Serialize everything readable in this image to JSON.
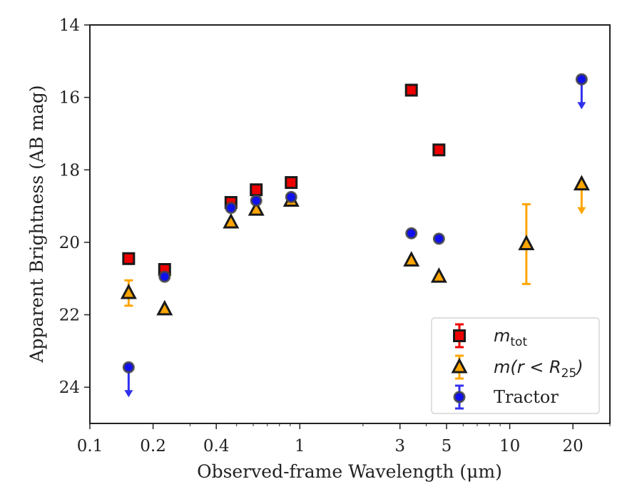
{
  "chart_data": {
    "type": "scatter",
    "xlabel": "Observed-frame Wavelength (μm)",
    "ylabel": "Apparent Brightness (AB mag)",
    "x_scale": "log",
    "xlim": [
      0.1,
      30
    ],
    "ylim": [
      25,
      14
    ],
    "y_inverted": true,
    "x_ticks": [
      0.1,
      0.2,
      0.4,
      1,
      3,
      5,
      10,
      20
    ],
    "x_tick_labels": [
      "0.1",
      "0.2",
      "0.4",
      "1",
      "3",
      "5",
      "10",
      "20"
    ],
    "y_ticks": [
      14,
      16,
      18,
      20,
      22,
      24
    ],
    "y_tick_labels": [
      "14",
      "16",
      "18",
      "20",
      "22",
      "24"
    ],
    "grid": false,
    "legend_position": "bottom-right",
    "series": [
      {
        "name": "m_tot",
        "legend_label": "m",
        "legend_sub": "tot",
        "marker": "square",
        "color": "#ee0000",
        "error_color": "#ee0000",
        "points": [
          {
            "x": 0.153,
            "y": 20.45
          },
          {
            "x": 0.227,
            "y": 20.75
          },
          {
            "x": 0.47,
            "y": 18.9
          },
          {
            "x": 0.62,
            "y": 18.55
          },
          {
            "x": 0.91,
            "y": 18.35
          },
          {
            "x": 3.4,
            "y": 15.8
          },
          {
            "x": 4.6,
            "y": 17.45
          }
        ]
      },
      {
        "name": "m(r<R25)",
        "legend_label": "m(r < R",
        "legend_sub": "25",
        "legend_suffix": ")",
        "marker": "triangle",
        "color": "#ffa500",
        "error_color": "#ffa500",
        "points": [
          {
            "x": 0.153,
            "y": 21.4,
            "yerr": 0.35
          },
          {
            "x": 0.227,
            "y": 21.85
          },
          {
            "x": 0.47,
            "y": 19.45
          },
          {
            "x": 0.62,
            "y": 19.1
          },
          {
            "x": 0.91,
            "y": 18.85
          },
          {
            "x": 3.4,
            "y": 20.5
          },
          {
            "x": 4.6,
            "y": 20.95
          },
          {
            "x": 12.0,
            "y": 20.05,
            "yerr": 1.1
          },
          {
            "x": 22.0,
            "y": 18.4,
            "upper_limit": true
          }
        ]
      },
      {
        "name": "Tractor",
        "legend_label": "Tractor",
        "marker": "circle",
        "color": "#1010ee",
        "error_color": "#3030f0",
        "points": [
          {
            "x": 0.153,
            "y": 23.45,
            "upper_limit": true
          },
          {
            "x": 0.227,
            "y": 20.95
          },
          {
            "x": 0.47,
            "y": 19.05
          },
          {
            "x": 0.62,
            "y": 18.85
          },
          {
            "x": 0.91,
            "y": 18.75
          },
          {
            "x": 3.4,
            "y": 19.75
          },
          {
            "x": 4.6,
            "y": 19.9
          },
          {
            "x": 22.0,
            "y": 15.5,
            "upper_limit": true
          }
        ]
      }
    ]
  }
}
